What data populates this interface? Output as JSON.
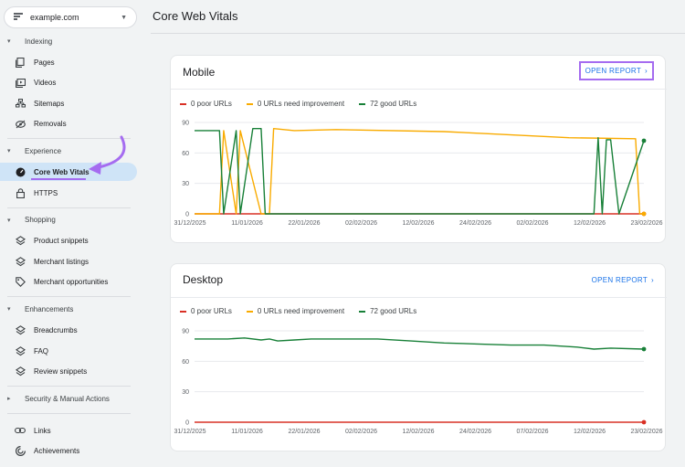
{
  "property": {
    "name": "example.com"
  },
  "sidebar": {
    "sections": [
      {
        "label": "Indexing",
        "items": [
          {
            "label": "Pages",
            "icon": "pages-icon"
          },
          {
            "label": "Videos",
            "icon": "videos-icon"
          },
          {
            "label": "Sitemaps",
            "icon": "sitemaps-icon"
          },
          {
            "label": "Removals",
            "icon": "removals-icon"
          }
        ]
      },
      {
        "label": "Experience",
        "items": [
          {
            "label": "Core Web Vitals",
            "icon": "speedometer-icon",
            "active": true
          },
          {
            "label": "HTTPS",
            "icon": "lock-icon"
          }
        ]
      },
      {
        "label": "Shopping",
        "items": [
          {
            "label": "Product snippets",
            "icon": "diamond-layers-icon"
          },
          {
            "label": "Merchant listings",
            "icon": "diamond-layers-icon"
          },
          {
            "label": "Merchant opportunities",
            "icon": "tag-icon"
          }
        ]
      },
      {
        "label": "Enhancements",
        "items": [
          {
            "label": "Breadcrumbs",
            "icon": "diamond-layers-icon"
          },
          {
            "label": "FAQ",
            "icon": "diamond-layers-icon"
          },
          {
            "label": "Review snippets",
            "icon": "diamond-layers-icon"
          }
        ]
      },
      {
        "label": "Security & Manual Actions",
        "collapsed": true,
        "items": []
      }
    ],
    "footer_items": [
      {
        "label": "Links",
        "icon": "link-icon"
      },
      {
        "label": "Achievements",
        "icon": "achievements-icon"
      }
    ]
  },
  "page": {
    "title": "Core Web Vitals"
  },
  "colors": {
    "poor": "#d93025",
    "needs_improvement": "#f9ab00",
    "good": "#188038",
    "accent": "#1a73e8",
    "highlight": "#a56cf0"
  },
  "cards": [
    {
      "title": "Mobile",
      "open_report": "OPEN REPORT",
      "highlighted": true,
      "legend": [
        "0 poor URLs",
        "0 URLs need improvement",
        "72 good URLs"
      ]
    },
    {
      "title": "Desktop",
      "open_report": "OPEN REPORT",
      "highlighted": false,
      "legend": [
        "0 poor URLs",
        "0 URLs need improvement",
        "72 good URLs"
      ]
    }
  ],
  "chart_data": [
    {
      "type": "line",
      "title": "Mobile",
      "ylim": [
        0,
        90
      ],
      "y_ticks": [
        0,
        30,
        60,
        90
      ],
      "x_ticks": [
        "31/12/2025",
        "11/01/2026",
        "22/01/2026",
        "02/02/2026",
        "12/02/2026",
        "24/02/2026",
        "02/02/2026",
        "12/02/2026",
        "23/02/2026"
      ],
      "xlim": [
        0,
        54
      ],
      "grid": true,
      "series": [
        {
          "name": "0 poor URLs",
          "x": [
            0,
            54
          ],
          "values": [
            0,
            0
          ]
        },
        {
          "name": "0 URLs need improvement",
          "x": [
            0,
            3,
            3.5,
            5,
            5.5,
            8,
            9,
            9.5,
            12,
            17,
            30,
            35,
            45,
            53,
            53.5,
            54
          ],
          "values": [
            0,
            0,
            82,
            0,
            82,
            0,
            0,
            84,
            82,
            83,
            81,
            79,
            75,
            74,
            0,
            0
          ]
        },
        {
          "name": "72 good URLs",
          "x": [
            0,
            3,
            3.5,
            5,
            5.5,
            7,
            8,
            8.5,
            9,
            9.5,
            47,
            48,
            48.5,
            49,
            49.5,
            50,
            51,
            54
          ],
          "values": [
            82,
            82,
            0,
            82,
            0,
            84,
            84,
            0,
            0,
            0,
            0,
            0,
            75,
            0,
            73,
            73,
            0,
            72
          ]
        }
      ]
    },
    {
      "type": "line",
      "title": "Desktop",
      "ylim": [
        0,
        90
      ],
      "y_ticks": [
        0,
        30,
        60,
        90
      ],
      "x_ticks": [
        "31/12/2025",
        "11/01/2026",
        "22/01/2026",
        "02/02/2026",
        "12/02/2026",
        "24/02/2026",
        "07/02/2026",
        "12/02/2026",
        "23/02/2026"
      ],
      "xlim": [
        0,
        54
      ],
      "grid": true,
      "series": [
        {
          "name": "0 poor URLs",
          "x": [
            0,
            54
          ],
          "values": [
            0,
            0
          ]
        },
        {
          "name": "72 good URLs",
          "x": [
            0,
            4,
            6,
            8,
            9,
            10,
            12,
            14,
            18,
            22,
            26,
            30,
            34,
            38,
            42,
            46,
            48,
            50,
            54
          ],
          "values": [
            82,
            82,
            83,
            81,
            82,
            80,
            81,
            82,
            82,
            82,
            80,
            78,
            77,
            76,
            76,
            74,
            72,
            73,
            72
          ]
        }
      ]
    }
  ]
}
